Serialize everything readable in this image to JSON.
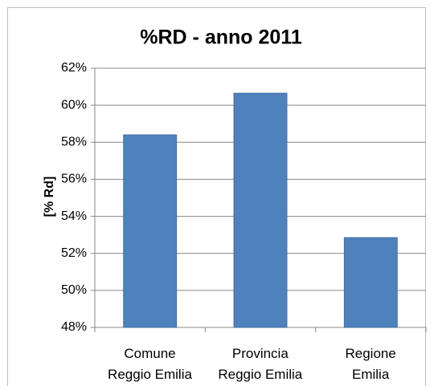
{
  "chart_data": {
    "type": "bar",
    "title": "%RD  - anno 2011",
    "y_label": "[% Rd]",
    "categories": [
      "Comune\nReggio Emilia",
      "Provincia\nReggio Emilia",
      "Regione\nEmilia"
    ],
    "values": [
      58.4,
      60.65,
      52.85
    ],
    "color": "#4f81bd",
    "ylim": [
      48,
      62
    ],
    "yticks": [
      {
        "value": 48,
        "label": "48%"
      },
      {
        "value": 50,
        "label": "50%"
      },
      {
        "value": 52,
        "label": "52%"
      },
      {
        "value": 54,
        "label": "54%"
      },
      {
        "value": 56,
        "label": "56%"
      },
      {
        "value": 58,
        "label": "58%"
      },
      {
        "value": 60,
        "label": "60%"
      },
      {
        "value": 62,
        "label": "62%"
      }
    ],
    "grid": true
  }
}
